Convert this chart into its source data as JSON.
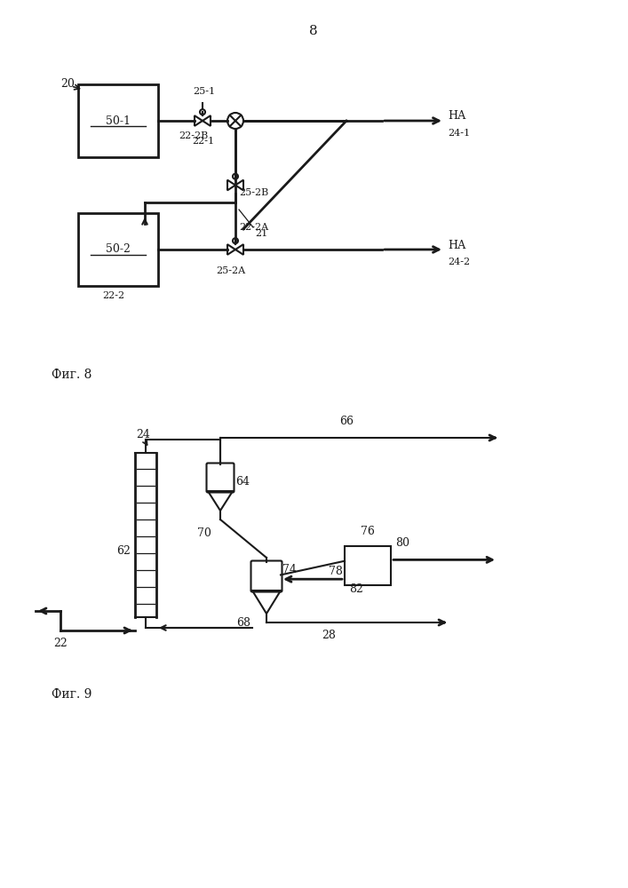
{
  "page_number": "8",
  "fig8_label": "Фиг. 8",
  "fig9_label": "Фиг. 9",
  "fig8_note_20": "20",
  "fig8_note_21": "21",
  "fig8_note_501": "50-1",
  "fig8_note_502": "50-2",
  "fig8_note_221": "22-1",
  "fig8_note_222": "22-2",
  "fig8_note_222A": "22-2A",
  "fig8_note_222B": "22-2B",
  "fig8_note_251": "25-1",
  "fig8_note_252A": "25-2A",
  "fig8_note_252B": "25-2B",
  "fig8_note_HA1": "НА",
  "fig8_note_241": "24-1",
  "fig8_note_HA2": "НА",
  "fig8_note_242": "24-2",
  "fig9_note_24": "24",
  "fig9_note_22": "22",
  "fig9_note_28": "28",
  "fig9_note_62": "62",
  "fig9_note_64": "64",
  "fig9_note_66": "66",
  "fig9_note_68": "68",
  "fig9_note_70": "70",
  "fig9_note_74": "74",
  "fig9_note_76": "76",
  "fig9_note_78": "78",
  "fig9_note_80": "80",
  "fig9_note_82": "82",
  "bg_color": "#ffffff",
  "line_color": "#1a1a1a"
}
